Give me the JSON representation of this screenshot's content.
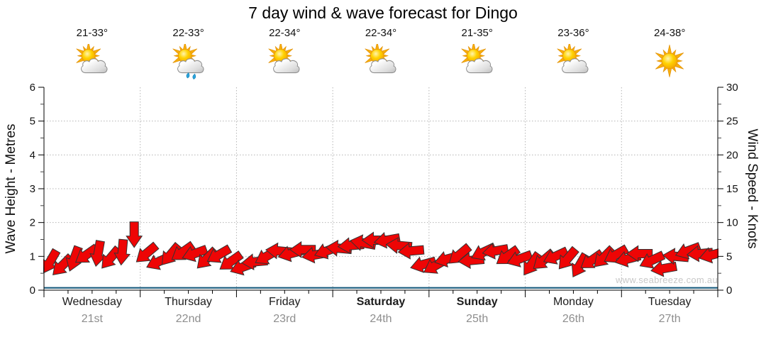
{
  "title": "7 day wind & wave forecast for Dingo",
  "watermark": "www.seabreeze.com.au",
  "days": [
    {
      "name": "Wednesday",
      "date": "21st",
      "temp": "21-33°",
      "icon": "sun-cloud",
      "bold": false
    },
    {
      "name": "Thursday",
      "date": "22nd",
      "temp": "22-33°",
      "icon": "sun-cloud-shower",
      "bold": false
    },
    {
      "name": "Friday",
      "date": "23rd",
      "temp": "22-34°",
      "icon": "sun-cloud",
      "bold": false
    },
    {
      "name": "Saturday",
      "date": "24th",
      "temp": "22-34°",
      "icon": "sun-cloud",
      "bold": true
    },
    {
      "name": "Sunday",
      "date": "25th",
      "temp": "21-35°",
      "icon": "sun-cloud",
      "bold": true
    },
    {
      "name": "Monday",
      "date": "26th",
      "temp": "23-36°",
      "icon": "sun-cloud",
      "bold": false
    },
    {
      "name": "Tuesday",
      "date": "27th",
      "temp": "24-38°",
      "icon": "sun",
      "bold": false
    }
  ],
  "chart_data": {
    "type": "wind-arrows",
    "title": "7 day wind & wave forecast for Dingo",
    "left_axis": {
      "label": "Wave Height - Metres",
      "min": 0,
      "max": 6,
      "major_ticks": [
        0,
        1,
        2,
        3,
        4,
        5,
        6
      ],
      "minor_step": 0.5
    },
    "right_axis": {
      "label": "Wind Speed - Knots",
      "min": 0,
      "max": 30,
      "major_ticks": [
        0,
        5,
        10,
        15,
        20,
        25,
        30
      ],
      "minor_step": 2.5
    },
    "x_axis": {
      "days": 7,
      "points_per_day": 8,
      "interval_hours": 3,
      "minor_tick_hours": 6
    },
    "grid": "dotted",
    "wave_height_m": 0.07,
    "wind_speed_knots": [
      4.2,
      3.6,
      4.6,
      5.2,
      5.4,
      4.7,
      5.6,
      8.2,
      5.4,
      4.2,
      5.2,
      5.6,
      5.4,
      4.6,
      5.2,
      4.2,
      3.4,
      4.2,
      5.0,
      5.8,
      5.4,
      6.0,
      5.2,
      5.8,
      6.2,
      6.6,
      7.0,
      7.4,
      7.4,
      6.6,
      5.8,
      3.8,
      3.6,
      4.6,
      5.2,
      4.4,
      5.6,
      5.8,
      5.0,
      4.6,
      3.8,
      4.4,
      5.0,
      4.6,
      3.6,
      4.4,
      4.8,
      5.2,
      4.6,
      5.4,
      4.4,
      3.2,
      5.0,
      5.8,
      5.4,
      5.2
    ],
    "wind_dir_deg": [
      120,
      135,
      110,
      145,
      100,
      130,
      95,
      90,
      140,
      155,
      130,
      145,
      160,
      135,
      150,
      145,
      160,
      175,
      150,
      185,
      165,
      180,
      170,
      160,
      185,
      175,
      190,
      180,
      170,
      185,
      175,
      165,
      150,
      165,
      140,
      175,
      155,
      170,
      145,
      160,
      125,
      140,
      155,
      130,
      120,
      145,
      135,
      150,
      165,
      180,
      155,
      170,
      185,
      160,
      175,
      165
    ],
    "colors": {
      "arrow_fill": "#ee0505",
      "arrow_stroke": "#333333",
      "wave_line": "#175a7d",
      "grid_line": "#b5b5b5",
      "axis_line": "#000000",
      "tick_text": "#111111",
      "date_text": "#8e8e8e",
      "watermark_text": "#c8c8c8"
    }
  }
}
